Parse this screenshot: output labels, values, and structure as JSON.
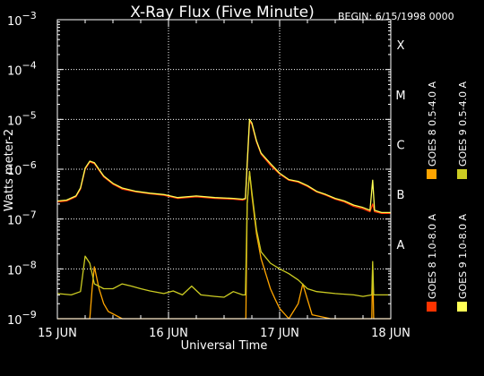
{
  "header": {
    "title": "X-Ray Flux (Five Minute)",
    "begin": "BEGIN: 6/15/1998 0000"
  },
  "chart_data": {
    "type": "line",
    "title": "X-Ray Flux (Five Minute)",
    "xlabel": "Universal Time",
    "ylabel": "Watts meter-2",
    "xlim": [
      0,
      72
    ],
    "x_unit": "hours from 15 Jun 1998 00:00 UT",
    "x_ticks": [
      {
        "x": 0,
        "label": "15 JUN"
      },
      {
        "x": 24,
        "label": "16 JUN"
      },
      {
        "x": 48,
        "label": "17 JUN"
      },
      {
        "x": 72,
        "label": "18 JUN"
      }
    ],
    "y_scale": "log",
    "ylim": [
      1e-09,
      0.001
    ],
    "y_ticks": [
      {
        "value": 0.001,
        "base": "10",
        "exp": "−3"
      },
      {
        "value": 0.0001,
        "base": "10",
        "exp": "−4"
      },
      {
        "value": 1e-05,
        "base": "10",
        "exp": "−5"
      },
      {
        "value": 1e-06,
        "base": "10",
        "exp": "−6"
      },
      {
        "value": 1e-07,
        "base": "10",
        "exp": "−7"
      },
      {
        "value": 1e-08,
        "base": "10",
        "exp": "−8"
      },
      {
        "value": 1e-09,
        "base": "10",
        "exp": "−9"
      }
    ],
    "flare_classes": [
      {
        "label": "X",
        "value": 0.0003
      },
      {
        "label": "M",
        "value": 3e-05
      },
      {
        "label": "C",
        "value": 3e-06
      },
      {
        "label": "B",
        "value": 3e-07
      },
      {
        "label": "A",
        "value": 3e-08
      }
    ],
    "grid": {
      "horizontal": true,
      "vertical_at_days": true,
      "style": "dotted"
    },
    "legend_position": "right, rotated vertical",
    "colors": {
      "goes8_long": "#ff3300",
      "goes8_short": "#ffa500",
      "goes9_long": "#ffff55",
      "goes9_short": "#cccc22"
    },
    "series": [
      {
        "name": "GOES 8 1.0-8.0 A",
        "color_key": "goes8_long",
        "points": [
          [
            0,
            2.2e-07
          ],
          [
            2,
            2.3e-07
          ],
          [
            4,
            2.8e-07
          ],
          [
            5,
            4e-07
          ],
          [
            6,
            1e-06
          ],
          [
            7,
            1.4e-06
          ],
          [
            8,
            1.3e-06
          ],
          [
            10,
            7e-07
          ],
          [
            12,
            5e-07
          ],
          [
            14,
            4e-07
          ],
          [
            17,
            3.5e-07
          ],
          [
            20,
            3.2e-07
          ],
          [
            23,
            3e-07
          ],
          [
            26,
            2.6e-07
          ],
          [
            30,
            2.8e-07
          ],
          [
            34,
            2.6e-07
          ],
          [
            38,
            2.5e-07
          ],
          [
            40,
            2.4e-07
          ],
          [
            40.6,
            2.5e-07
          ],
          [
            41,
            1.2e-06
          ],
          [
            41.5,
            9e-06
          ],
          [
            42,
            8e-06
          ],
          [
            43,
            3.5e-06
          ],
          [
            44,
            2e-06
          ],
          [
            46,
            1.2e-06
          ],
          [
            48,
            8e-07
          ],
          [
            50,
            6e-07
          ],
          [
            52,
            5.5e-07
          ],
          [
            54,
            4.5e-07
          ],
          [
            56,
            3.5e-07
          ],
          [
            58,
            3e-07
          ],
          [
            60,
            2.5e-07
          ],
          [
            62,
            2.2e-07
          ],
          [
            64,
            1.8e-07
          ],
          [
            66,
            1.6e-07
          ],
          [
            67.5,
            1.4e-07
          ],
          [
            68.1,
            2e-07
          ],
          [
            68.5,
            1.4e-07
          ],
          [
            70,
            1.3e-07
          ],
          [
            72,
            1.3e-07
          ]
        ]
      },
      {
        "name": "GOES 8 0.5-4.0 A",
        "color_key": "goes8_short",
        "points": [
          [
            0,
            1e-09
          ],
          [
            7,
            1e-09
          ],
          [
            7.5,
            4e-09
          ],
          [
            8,
            1.1e-08
          ],
          [
            9,
            4e-09
          ],
          [
            10,
            2e-09
          ],
          [
            11,
            1.4e-09
          ],
          [
            14,
            1e-09
          ],
          [
            40.7,
            1e-09
          ],
          [
            41,
            2e-07
          ],
          [
            41.5,
            9e-07
          ],
          [
            42,
            3e-07
          ],
          [
            43,
            5e-08
          ],
          [
            44,
            1.6e-08
          ],
          [
            45,
            8e-09
          ],
          [
            46,
            4e-09
          ],
          [
            47,
            2.5e-09
          ],
          [
            48,
            1.6e-09
          ],
          [
            50,
            1e-09
          ],
          [
            52,
            2e-09
          ],
          [
            53,
            5e-09
          ],
          [
            55,
            1.2e-09
          ],
          [
            59,
            1e-09
          ],
          [
            67.9,
            1e-09
          ],
          [
            68.1,
            1.2e-08
          ],
          [
            68.3,
            1e-09
          ],
          [
            72,
            1e-09
          ]
        ]
      },
      {
        "name": "GOES 9 1.0-8.0 A",
        "color_key": "goes9_long",
        "points": [
          [
            0,
            2.3e-07
          ],
          [
            2,
            2.4e-07
          ],
          [
            4,
            2.9e-07
          ],
          [
            5,
            4.2e-07
          ],
          [
            6,
            1.05e-06
          ],
          [
            7,
            1.45e-06
          ],
          [
            8,
            1.35e-06
          ],
          [
            10,
            7.3e-07
          ],
          [
            12,
            5.2e-07
          ],
          [
            14,
            4.2e-07
          ],
          [
            17,
            3.6e-07
          ],
          [
            20,
            3.3e-07
          ],
          [
            23,
            3.1e-07
          ],
          [
            26,
            2.7e-07
          ],
          [
            30,
            2.9e-07
          ],
          [
            34,
            2.7e-07
          ],
          [
            38,
            2.6e-07
          ],
          [
            40,
            2.5e-07
          ],
          [
            40.6,
            2.6e-07
          ],
          [
            41,
            1.3e-06
          ],
          [
            41.5,
            1e-05
          ],
          [
            42,
            8.5e-06
          ],
          [
            43,
            3.7e-06
          ],
          [
            44,
            2.1e-06
          ],
          [
            46,
            1.3e-06
          ],
          [
            48,
            8.3e-07
          ],
          [
            50,
            6.2e-07
          ],
          [
            52,
            5.7e-07
          ],
          [
            54,
            4.7e-07
          ],
          [
            56,
            3.6e-07
          ],
          [
            58,
            3.1e-07
          ],
          [
            60,
            2.6e-07
          ],
          [
            62,
            2.3e-07
          ],
          [
            64,
            1.9e-07
          ],
          [
            66,
            1.7e-07
          ],
          [
            67.5,
            1.5e-07
          ],
          [
            68.1,
            6e-07
          ],
          [
            68.5,
            1.5e-07
          ],
          [
            70,
            1.35e-07
          ],
          [
            72,
            1.35e-07
          ]
        ]
      },
      {
        "name": "GOES 9 0.5-4.0 A",
        "color_key": "goes9_short",
        "points": [
          [
            0,
            3.2e-09
          ],
          [
            3,
            3e-09
          ],
          [
            5,
            3.5e-09
          ],
          [
            6,
            1.8e-08
          ],
          [
            7,
            1.3e-08
          ],
          [
            8,
            5e-09
          ],
          [
            10,
            4e-09
          ],
          [
            12,
            4e-09
          ],
          [
            14,
            5e-09
          ],
          [
            16,
            4.5e-09
          ],
          [
            18,
            4e-09
          ],
          [
            20,
            3.6e-09
          ],
          [
            23,
            3.2e-09
          ],
          [
            25,
            3.6e-09
          ],
          [
            27,
            3e-09
          ],
          [
            29,
            4.5e-09
          ],
          [
            31,
            3e-09
          ],
          [
            34,
            2.8e-09
          ],
          [
            36,
            2.7e-09
          ],
          [
            38,
            3.5e-09
          ],
          [
            40,
            3e-09
          ],
          [
            40.6,
            3e-09
          ],
          [
            41,
            2e-07
          ],
          [
            41.5,
            9e-07
          ],
          [
            42,
            3.5e-07
          ],
          [
            43,
            6e-08
          ],
          [
            44,
            2.2e-08
          ],
          [
            46,
            1.3e-08
          ],
          [
            48,
            1e-08
          ],
          [
            50,
            8e-09
          ],
          [
            52,
            6e-09
          ],
          [
            54,
            4e-09
          ],
          [
            56,
            3.5e-09
          ],
          [
            60,
            3.2e-09
          ],
          [
            64,
            3e-09
          ],
          [
            66,
            2.8e-09
          ],
          [
            67.9,
            3e-09
          ],
          [
            68.1,
            1.4e-08
          ],
          [
            68.3,
            3e-09
          ],
          [
            72,
            3e-09
          ]
        ]
      }
    ]
  }
}
